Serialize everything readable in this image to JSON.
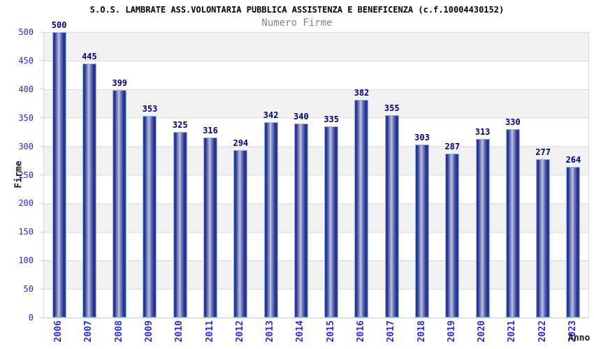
{
  "chart_data": {
    "type": "bar",
    "title": "S.O.S. LAMBRATE ASS.VOLONTARIA PUBBLICA ASSISTENZA E BENEFICENZA (c.f.10004430152)",
    "subtitle": "Numero Firme",
    "xlabel": "Anno",
    "ylabel": "Firme",
    "categories": [
      "2006",
      "2007",
      "2008",
      "2009",
      "2010",
      "2011",
      "2012",
      "2013",
      "2014",
      "2015",
      "2016",
      "2017",
      "2018",
      "2019",
      "2020",
      "2021",
      "2022",
      "2023"
    ],
    "values": [
      500,
      445,
      399,
      353,
      325,
      316,
      294,
      342,
      340,
      335,
      382,
      355,
      303,
      287,
      313,
      330,
      277,
      264
    ],
    "ylim": [
      0,
      500
    ],
    "ytick_step": 50,
    "yticks": [
      500,
      450,
      400,
      350,
      300,
      250,
      200,
      150,
      100,
      50,
      0
    ],
    "grid": true,
    "legend": "none",
    "colors": {
      "bar_dark": "#232c8e",
      "bar_highlight": "#c0c5e0",
      "bar_edge": "#8fb9ea",
      "value_label": "#000080",
      "tick_label": "#2b2bd4",
      "band_gray": "#f1f1f1",
      "band_white": "#ffffff",
      "gridline": "#d9d9d9",
      "title": "#000000",
      "subtitle": "#848484",
      "axis_title": "#1a1a1a"
    }
  }
}
